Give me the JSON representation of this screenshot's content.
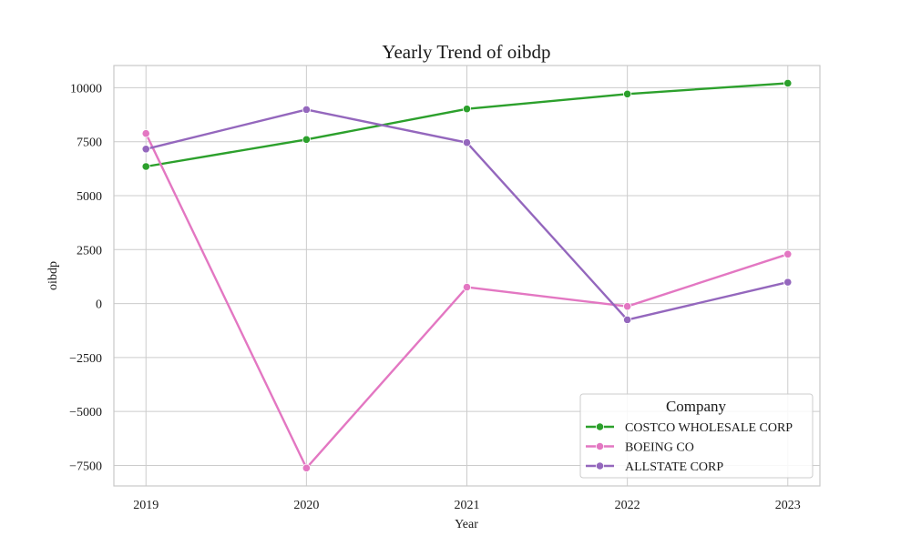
{
  "chart_data": {
    "type": "line",
    "title": "Yearly Trend of oibdp",
    "xlabel": "Year",
    "ylabel": "oibdp",
    "x": [
      2019,
      2020,
      2021,
      2022,
      2023
    ],
    "x_tick_labels": [
      "2019",
      "2020",
      "2021",
      "2022",
      "2023"
    ],
    "y_ticks": [
      -7500,
      -5000,
      -2500,
      0,
      2500,
      5000,
      7500,
      10000
    ],
    "y_tick_labels": [
      "−7500",
      "−5000",
      "−2500",
      "0",
      "2500",
      "5000",
      "7500",
      "10000"
    ],
    "ylim": [
      -8450,
      11030
    ],
    "xlim": [
      2018.8,
      2023.2
    ],
    "grid": true,
    "legend": {
      "title": "Company",
      "placement": "lower-right"
    },
    "series": [
      {
        "name": "COSTCO WHOLESALE CORP",
        "color": "#2ca02c",
        "values": [
          6350,
          7600,
          9020,
          9710,
          10210
        ]
      },
      {
        "name": "BOEING CO",
        "color": "#e377c2",
        "values": [
          7880,
          -7620,
          760,
          -130,
          2290
        ]
      },
      {
        "name": "ALLSTATE CORP",
        "color": "#9467bd",
        "values": [
          7160,
          8990,
          7460,
          -750,
          990
        ]
      }
    ]
  }
}
